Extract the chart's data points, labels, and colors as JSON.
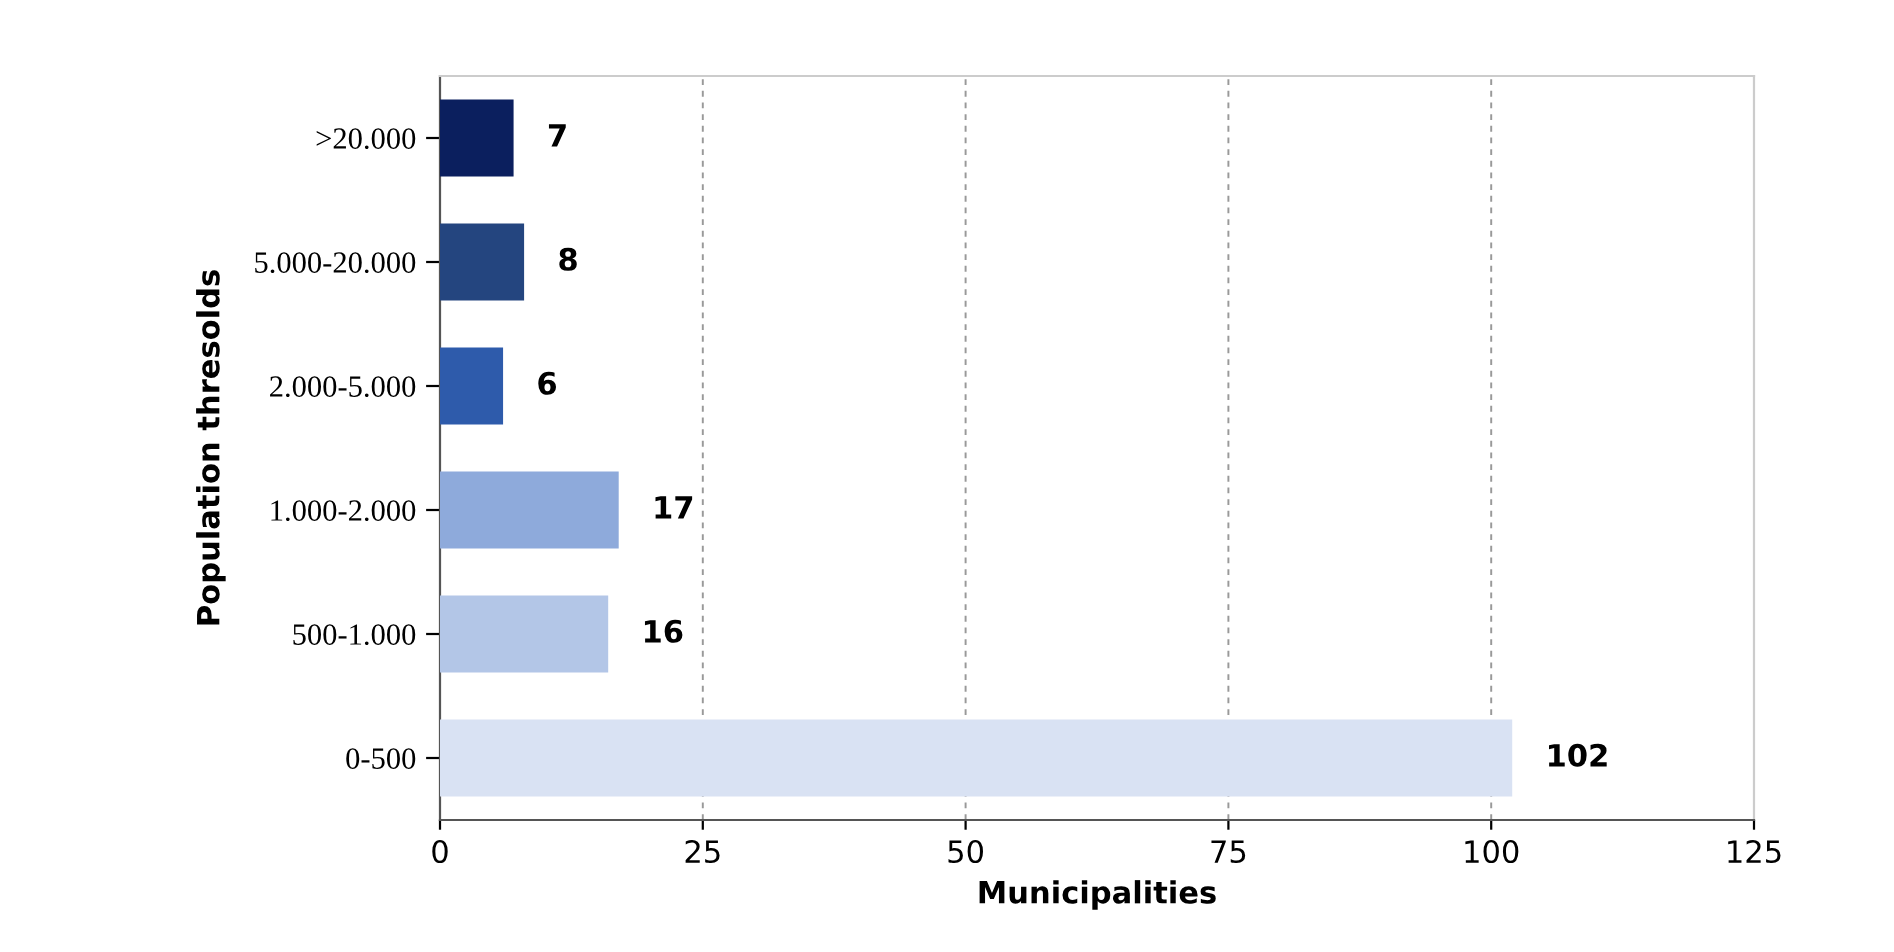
{
  "chart_data": {
    "type": "bar",
    "orientation": "horizontal",
    "xlabel": "Municipalities",
    "ylabel": "Population thresolds",
    "categories": [
      ">20.000",
      "5.000-20.000",
      "2.000-5.000",
      "1.000-2.000",
      "500-1.000",
      "0-500"
    ],
    "values": [
      7,
      8,
      6,
      17,
      16,
      102
    ],
    "colors": [
      "#0b1f5e",
      "#24457f",
      "#2e5bab",
      "#8eaadb",
      "#b3c6e7",
      "#d9e2f3"
    ],
    "xlim": [
      0,
      125
    ],
    "xticks": [
      0,
      25,
      50,
      75,
      100,
      125
    ],
    "grid": "x",
    "data_labels": true,
    "legend": false
  }
}
